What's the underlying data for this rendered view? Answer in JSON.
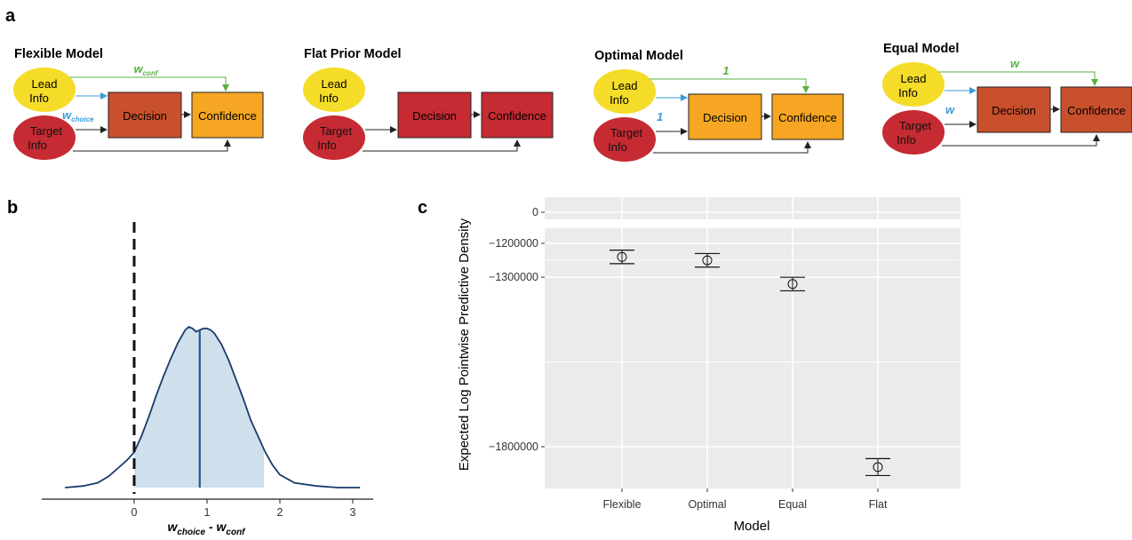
{
  "panels": {
    "a": "a",
    "b": "b",
    "c": "c"
  },
  "diagram": {
    "lead_label": [
      "Lead",
      "Info"
    ],
    "target_label": [
      "Target",
      "Info"
    ],
    "decision_label": "Decision",
    "confidence_label": "Confidence",
    "models": [
      {
        "title": "Flexible Model",
        "conf_weight": "w",
        "conf_weight_sub": "conf",
        "choice_weight": "w",
        "choice_weight_sub": "choice",
        "decision_color": "#c9502c",
        "confidence_color": "#f6a623"
      },
      {
        "title": "Flat Prior Model",
        "conf_weight": "",
        "conf_weight_sub": "",
        "choice_weight": "",
        "choice_weight_sub": "",
        "decision_color": "#c62a32",
        "confidence_color": "#c62a32"
      },
      {
        "title": "Optimal Model",
        "conf_weight": "1",
        "conf_weight_sub": "",
        "choice_weight": "1",
        "choice_weight_sub": "",
        "decision_color": "#f6a623",
        "confidence_color": "#f6a623"
      },
      {
        "title": "Equal Model",
        "conf_weight": "w",
        "conf_weight_sub": "",
        "choice_weight": "w",
        "choice_weight_sub": "",
        "decision_color": "#c9502c",
        "confidence_color": "#c9502c"
      }
    ],
    "colors": {
      "lead": "#f5dc29",
      "target": "#c62a32",
      "green": "#5ab040",
      "blue": "#3a9bd8"
    }
  },
  "chart_data": [
    {
      "type": "area",
      "panel": "b",
      "x_ticks": [
        0,
        1,
        2,
        3
      ],
      "xlabel_main": "w",
      "xlabel_sub1": "choice",
      "xlabel_mid": " - ",
      "xlabel_main2": "w",
      "xlabel_sub2": "conf",
      "xlim": [
        -1.0,
        3.2
      ],
      "density_x": [
        -0.95,
        -0.7,
        -0.5,
        -0.35,
        -0.2,
        -0.1,
        0.0,
        0.1,
        0.2,
        0.3,
        0.4,
        0.5,
        0.6,
        0.7,
        0.75,
        0.8,
        0.85,
        0.9,
        0.95,
        1.0,
        1.05,
        1.1,
        1.2,
        1.3,
        1.4,
        1.5,
        1.6,
        1.7,
        1.8,
        1.9,
        2.0,
        2.2,
        2.5,
        2.8,
        3.1
      ],
      "density_y": [
        0.0,
        0.01,
        0.03,
        0.07,
        0.13,
        0.17,
        0.22,
        0.32,
        0.44,
        0.57,
        0.69,
        0.8,
        0.9,
        0.98,
        1.0,
        0.99,
        0.97,
        0.98,
        0.99,
        0.99,
        0.98,
        0.96,
        0.89,
        0.79,
        0.67,
        0.55,
        0.42,
        0.32,
        0.22,
        0.14,
        0.08,
        0.03,
        0.01,
        0.0,
        0.0
      ],
      "shade_range": [
        0.0,
        1.78
      ],
      "median": 0.9,
      "reference_line": 0,
      "colors": {
        "line": "#1b3a6b",
        "fill": "#cfe0ec",
        "median": "#1a5a96"
      }
    },
    {
      "type": "scatter",
      "panel": "c",
      "categories": [
        "Flexible",
        "Optimal",
        "Equal",
        "Flat"
      ],
      "values": [
        -1240000,
        -1250000,
        -1320000,
        -1860000
      ],
      "err_low": [
        -1260000,
        -1270000,
        -1340000,
        -1885000
      ],
      "err_high": [
        -1220000,
        -1230000,
        -1300000,
        -1835000
      ],
      "y_ticks_top": [
        0
      ],
      "y_ticks_bottom": [
        -1200000,
        -1300000,
        -1800000
      ],
      "y_tick_labels_top": [
        "0"
      ],
      "y_tick_labels_bottom": [
        "−1200000",
        "−1300000",
        "−1800000"
      ],
      "xlabel": "Model",
      "ylabel": "Expected Log Pointwise Predictive Density",
      "grid": true
    }
  ]
}
